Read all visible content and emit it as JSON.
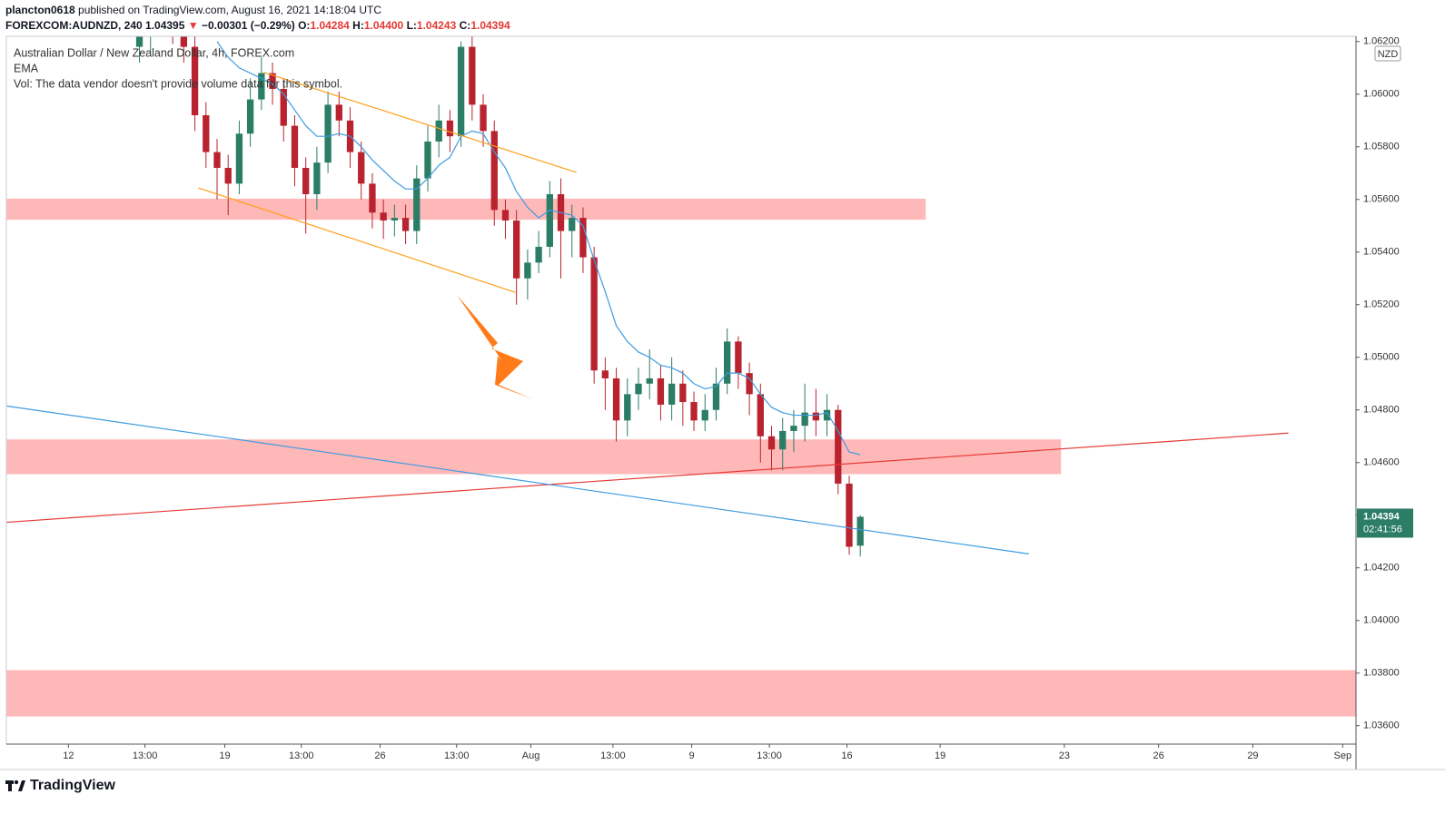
{
  "header": {
    "author": "plancton0618",
    "published": "published on TradingView.com, August 16, 2021 14:18:04 UTC",
    "symbol": "FOREXCOM:AUDNZD, 240",
    "last": "1.04395",
    "change_arrow": "▼",
    "change": "−0.00301 (−0.29%)",
    "ohlc": [
      {
        "label": "O:",
        "value": "1.04284"
      },
      {
        "label": "H:",
        "value": "1.04400"
      },
      {
        "label": "L:",
        "value": "1.04243"
      },
      {
        "label": "C:",
        "value": "1.04394"
      }
    ]
  },
  "footer": {
    "brand": "TradingView"
  },
  "chart_data": {
    "type": "candlestick",
    "legend_lines": [
      "Australian Dollar / New Zealand Dollar, 4h, FOREX.com",
      "EMA",
      "Vol: The data vendor doesn't provide volume data for this symbol."
    ],
    "currency": "NZD",
    "countdown": "02:41:56",
    "up_color": "#2b7d66",
    "down_color": "#b8232f",
    "xlim": [
      0,
      121.7
    ],
    "ylim": [
      1.0353,
      1.0622
    ],
    "xticks": [
      {
        "value": 5.6,
        "label": "12"
      },
      {
        "value": 12.5,
        "label": "13:00"
      },
      {
        "value": 19.7,
        "label": "19"
      },
      {
        "value": 26.6,
        "label": "13:00"
      },
      {
        "value": 33.7,
        "label": "26"
      },
      {
        "value": 40.6,
        "label": "13:00"
      },
      {
        "value": 47.3,
        "label": "Aug"
      },
      {
        "value": 54.7,
        "label": "13:00"
      },
      {
        "value": 61.8,
        "label": "9"
      },
      {
        "value": 68.8,
        "label": "13:00"
      },
      {
        "value": 75.8,
        "label": "16"
      },
      {
        "value": 84.2,
        "label": "19"
      },
      {
        "value": 95.4,
        "label": "23"
      },
      {
        "value": 103.9,
        "label": "26"
      },
      {
        "value": 112.4,
        "label": "29"
      },
      {
        "value": 120.5,
        "label": "Sep"
      }
    ],
    "yticks": [
      {
        "value": 1.062,
        "label": "1.06200"
      },
      {
        "value": 1.06,
        "label": "1.06000"
      },
      {
        "value": 1.058,
        "label": "1.05800"
      },
      {
        "value": 1.056,
        "label": "1.05600"
      },
      {
        "value": 1.054,
        "label": "1.05400"
      },
      {
        "value": 1.052,
        "label": "1.05200"
      },
      {
        "value": 1.05,
        "label": "1.05000"
      },
      {
        "value": 1.048,
        "label": "1.04800"
      },
      {
        "value": 1.046,
        "label": "1.04600"
      },
      {
        "value": 1.044,
        "label": "1.04400"
      },
      {
        "value": 1.042,
        "label": "1.04200"
      },
      {
        "value": 1.04,
        "label": "1.04000"
      },
      {
        "value": 1.038,
        "label": "1.03800"
      },
      {
        "value": 1.036,
        "label": "1.03600"
      }
    ],
    "x": [
      12,
      13,
      14,
      15,
      16,
      17,
      18,
      19,
      20,
      21,
      22,
      23,
      24,
      25,
      26,
      27,
      28,
      29,
      30,
      31,
      32,
      33,
      34,
      35,
      36,
      37,
      38,
      39,
      40,
      41,
      42,
      43,
      44,
      45,
      46,
      47,
      48,
      49,
      50,
      51,
      52,
      53,
      54,
      55,
      56,
      57,
      58,
      59,
      60,
      61,
      62,
      63,
      64,
      65,
      66,
      67,
      68,
      69,
      70,
      71,
      72,
      73,
      74,
      75,
      76,
      77
    ],
    "open": [
      1.0618,
      1.0622,
      1.0628,
      1.063,
      1.0625,
      1.0618,
      1.0592,
      1.0578,
      1.0572,
      1.0566,
      1.0585,
      1.0598,
      1.0608,
      1.0602,
      1.0588,
      1.0572,
      1.0562,
      1.0574,
      1.0596,
      1.059,
      1.0578,
      1.0566,
      1.0555,
      1.0552,
      1.0553,
      1.0548,
      1.0568,
      1.0582,
      1.059,
      1.0584,
      1.0618,
      1.0596,
      1.0586,
      1.0556,
      1.0552,
      1.053,
      1.0536,
      1.0542,
      1.0562,
      1.0548,
      1.0553,
      1.0538,
      1.0495,
      1.0492,
      1.0476,
      1.0486,
      1.049,
      1.0492,
      1.0482,
      1.049,
      1.0483,
      1.0476,
      1.048,
      1.049,
      1.0506,
      1.0494,
      1.0486,
      1.047,
      1.0465,
      1.0472,
      1.0474,
      1.0479,
      1.0476,
      1.048,
      1.0452,
      1.04284
    ],
    "high": [
      1.0627,
      1.0633,
      1.0635,
      1.0636,
      1.063,
      1.0622,
      1.0597,
      1.0583,
      1.0577,
      1.059,
      1.0606,
      1.0614,
      1.0612,
      1.0606,
      1.0592,
      1.0576,
      1.058,
      1.0601,
      1.0601,
      1.0595,
      1.0582,
      1.057,
      1.056,
      1.0558,
      1.0558,
      1.0573,
      1.0588,
      1.0596,
      1.0594,
      1.062,
      1.0622,
      1.06,
      1.059,
      1.056,
      1.0556,
      1.0541,
      1.0548,
      1.0567,
      1.0568,
      1.0558,
      1.0557,
      1.0542,
      1.05,
      1.0496,
      1.0492,
      1.0496,
      1.0503,
      1.0497,
      1.05,
      1.0495,
      1.0487,
      1.0486,
      1.0496,
      1.0511,
      1.0508,
      1.0498,
      1.049,
      1.0474,
      1.0477,
      1.048,
      1.049,
      1.0488,
      1.0486,
      1.0482,
      1.0455,
      1.044
    ],
    "low": [
      1.0612,
      1.0616,
      1.0622,
      1.0619,
      1.0612,
      1.0586,
      1.0572,
      1.056,
      1.0554,
      1.0562,
      1.058,
      1.0594,
      1.0596,
      1.0582,
      1.0565,
      1.0547,
      1.0556,
      1.057,
      1.0584,
      1.0572,
      1.056,
      1.0549,
      1.0545,
      1.0546,
      1.0543,
      1.0543,
      1.0563,
      1.0576,
      1.0578,
      1.058,
      1.059,
      1.058,
      1.055,
      1.0545,
      1.052,
      1.0522,
      1.0532,
      1.0538,
      1.053,
      1.0538,
      1.0532,
      1.049,
      1.048,
      1.0468,
      1.047,
      1.048,
      1.0484,
      1.0476,
      1.0476,
      1.0474,
      1.0472,
      1.0472,
      1.0476,
      1.0486,
      1.0488,
      1.0478,
      1.046,
      1.0457,
      1.0457,
      1.0464,
      1.0468,
      1.047,
      1.047,
      1.0448,
      1.0425,
      1.04243
    ],
    "close": [
      1.0622,
      1.0628,
      1.063,
      1.0625,
      1.0618,
      1.0592,
      1.0578,
      1.0572,
      1.0566,
      1.0585,
      1.0598,
      1.0608,
      1.0602,
      1.0588,
      1.0572,
      1.0562,
      1.0574,
      1.0596,
      1.059,
      1.0578,
      1.0566,
      1.0555,
      1.0552,
      1.0553,
      1.0548,
      1.0568,
      1.0582,
      1.059,
      1.0584,
      1.0618,
      1.0596,
      1.0586,
      1.0556,
      1.0552,
      1.053,
      1.0536,
      1.0542,
      1.0562,
      1.0548,
      1.0553,
      1.0538,
      1.0495,
      1.0492,
      1.0476,
      1.0486,
      1.049,
      1.0492,
      1.0482,
      1.049,
      1.0483,
      1.0476,
      1.048,
      1.049,
      1.0506,
      1.0494,
      1.0486,
      1.047,
      1.0465,
      1.0472,
      1.0474,
      1.0479,
      1.0476,
      1.048,
      1.0452,
      1.0428,
      1.04394
    ],
    "ema": {
      "color": "#3d9be0",
      "values": [
        null,
        null,
        null,
        null,
        null,
        null,
        null,
        1.062,
        1.0614,
        1.061,
        1.0608,
        1.0606,
        1.0604,
        1.06,
        1.0594,
        1.0588,
        1.0584,
        1.0584,
        1.0585,
        1.0584,
        1.058,
        1.0575,
        1.0571,
        1.0567,
        1.0564,
        1.0564,
        1.0568,
        1.0573,
        1.0576,
        1.0584,
        1.0586,
        1.0585,
        1.0578,
        1.0572,
        1.0563,
        1.0557,
        1.0553,
        1.0556,
        1.0555,
        1.0554,
        1.055,
        1.0537,
        1.0525,
        1.0512,
        1.0506,
        1.0502,
        1.05,
        1.0497,
        1.0496,
        1.0494,
        1.049,
        1.0488,
        1.0489,
        1.0494,
        1.0494,
        1.0492,
        1.0486,
        1.0481,
        1.0479,
        1.0478,
        1.0478,
        1.0478,
        1.0479,
        1.0472,
        1.0464,
        1.0463
      ]
    },
    "zones": [
      {
        "color": "#ffb8b8",
        "x": [
          0,
          82.9
        ],
        "y": [
          1.05523,
          1.05603
        ]
      },
      {
        "color": "#ffb8b8",
        "x": [
          0,
          95.1
        ],
        "y": [
          1.04556,
          1.04688
        ]
      },
      {
        "color": "#ffb8b8",
        "x": [
          0,
          121.7
        ],
        "y": [
          1.03635,
          1.03811
        ]
      }
    ],
    "lines": [
      {
        "color": "#e53935",
        "x": [
          0,
          115.6
        ],
        "y": [
          1.04373,
          1.04712
        ]
      },
      {
        "color": "#3d9be0",
        "x": [
          0,
          92.2
        ],
        "y": [
          1.04815,
          1.04253
        ]
      },
      {
        "color": "#ff9f1a",
        "x": [
          23.2,
          51.4
        ],
        "y": [
          1.06083,
          1.05703
        ]
      },
      {
        "color": "#ff9f1a",
        "x": [
          17.3,
          45.9
        ],
        "y": [
          1.05644,
          1.05247
        ]
      }
    ]
  }
}
